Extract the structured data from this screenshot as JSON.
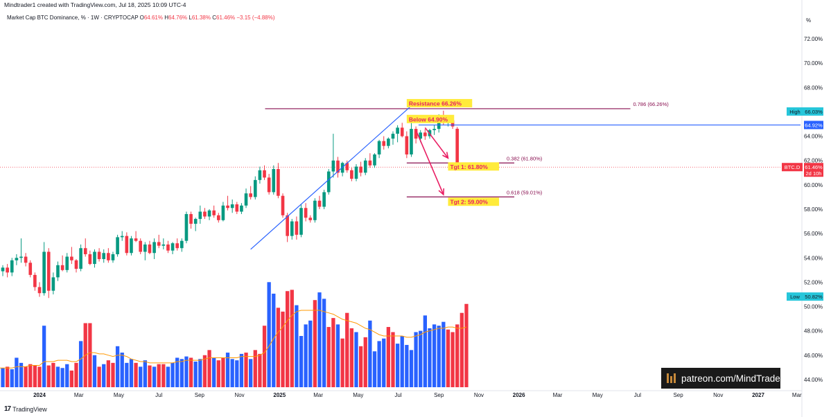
{
  "header": {
    "credit": "Mindtrader1 created with TradingView.com, Jul 18, 2025 10:09 UTC-4",
    "symbol": "Market Cap BTC Dominance, % · 1W · CRYPTOCAP",
    "o_label": "O",
    "o_value": "64.61%",
    "h_label": "H",
    "h_value": "64.76%",
    "l_label": "L",
    "l_value": "61.38%",
    "c_label": "C",
    "c_value": "61.46%",
    "change": "−3.15 (−4.88%)"
  },
  "footer": {
    "brand": "TradingView",
    "brand_mark": "17"
  },
  "watermark": {
    "text": "patreon.com/MindTrader",
    "icon": "patreon-logo-icon"
  },
  "colors": {
    "up": "#089981",
    "down": "#f23645",
    "vol_up": "#2962ff",
    "vol_down": "#f23645",
    "ma": "#ff9800",
    "trend": "#2962ff",
    "level": "#880e4f",
    "arrow": "#e91e63",
    "label_bg": "#ffeb3b",
    "label_text": "#e91e63",
    "high_low_tag": "#26c6da"
  },
  "chart_data": {
    "type": "candlestick",
    "title": "Market Cap BTC Dominance, % · 1W · CRYPTOCAP",
    "ylabel": "%",
    "ylim": [
      43.2,
      73.2
    ],
    "y_ticks": [
      "72.00%",
      "70.00%",
      "68.00%",
      "66.00%",
      "64.00%",
      "62.00%",
      "60.00%",
      "58.00%",
      "56.00%",
      "54.00%",
      "52.00%",
      "50.00%",
      "48.00%",
      "46.00%",
      "44.00%"
    ],
    "y_tick_values": [
      72,
      70,
      68,
      66,
      64,
      62,
      60,
      58,
      56,
      54,
      52,
      50,
      48,
      46,
      44
    ],
    "x_ticks": [
      "2024",
      "Mar",
      "May",
      "Jul",
      "Sep",
      "Nov",
      "2025",
      "Mar",
      "May",
      "Jul",
      "Sep",
      "Nov",
      "2026",
      "Mar",
      "May",
      "Jul",
      "Sep",
      "Nov",
      "2027",
      "Mar"
    ],
    "x_tick_dates": [
      "2024-01-01",
      "2024-03-01",
      "2024-05-01",
      "2024-07-01",
      "2024-09-01",
      "2024-11-01",
      "2025-01-01",
      "2025-03-01",
      "2025-05-01",
      "2025-07-01",
      "2025-09-01",
      "2025-11-01",
      "2026-01-01",
      "2026-03-01",
      "2026-05-01",
      "2026-07-01",
      "2026-09-01",
      "2026-11-01",
      "2027-01-01",
      "2027-03-01"
    ],
    "bold_x_ticks": [
      "2024",
      "2025",
      "2026",
      "2027"
    ],
    "first_candle_date": "2023-10-30",
    "series": [
      {
        "name": "BTC.D",
        "ohlc": [
          [
            52.6,
            53.2,
            52.1,
            52.9
          ],
          [
            52.9,
            53.4,
            52.5,
            53.2
          ],
          [
            53.2,
            53.5,
            52.4,
            52.8
          ],
          [
            52.8,
            54.0,
            52.5,
            53.8
          ],
          [
            53.8,
            54.3,
            53.4,
            54.0
          ],
          [
            54.0,
            55.6,
            53.6,
            54.1
          ],
          [
            54.1,
            54.4,
            53.3,
            53.6
          ],
          [
            53.6,
            53.8,
            52.4,
            52.6
          ],
          [
            52.6,
            52.8,
            51.3,
            51.6
          ],
          [
            51.6,
            52.0,
            50.8,
            51.1
          ],
          [
            51.1,
            55.3,
            50.9,
            54.5
          ],
          [
            54.5,
            54.8,
            50.7,
            51.3
          ],
          [
            51.3,
            52.8,
            51.0,
            52.4
          ],
          [
            52.4,
            53.7,
            52.1,
            53.4
          ],
          [
            53.4,
            54.2,
            52.9,
            53.0
          ],
          [
            53.0,
            54.4,
            52.8,
            54.1
          ],
          [
            54.1,
            54.9,
            53.5,
            53.8
          ],
          [
            53.8,
            53.9,
            52.8,
            53.1
          ],
          [
            53.1,
            55.1,
            52.9,
            54.8
          ],
          [
            54.8,
            55.6,
            54.1,
            54.3
          ],
          [
            54.3,
            54.6,
            53.4,
            53.5
          ],
          [
            53.5,
            54.7,
            53.2,
            54.5
          ],
          [
            54.5,
            54.8,
            53.7,
            53.9
          ],
          [
            53.9,
            54.7,
            53.6,
            54.4
          ],
          [
            54.4,
            54.8,
            53.6,
            53.8
          ],
          [
            53.8,
            54.5,
            53.6,
            54.3
          ],
          [
            54.3,
            55.9,
            54.1,
            55.7
          ],
          [
            55.7,
            56.2,
            55.4,
            55.8
          ],
          [
            55.8,
            56.1,
            54.2,
            54.4
          ],
          [
            54.4,
            55.8,
            54.2,
            55.6
          ],
          [
            55.6,
            56.2,
            55.3,
            55.4
          ],
          [
            55.4,
            55.6,
            54.3,
            54.5
          ],
          [
            54.5,
            55.3,
            53.8,
            55.1
          ],
          [
            55.1,
            55.4,
            54.3,
            54.4
          ],
          [
            54.4,
            55.6,
            53.9,
            55.3
          ],
          [
            55.3,
            55.9,
            54.8,
            55.0
          ],
          [
            55.0,
            55.6,
            54.7,
            55.1
          ],
          [
            55.1,
            55.4,
            54.4,
            54.6
          ],
          [
            54.6,
            55.3,
            54.3,
            55.2
          ],
          [
            55.2,
            55.6,
            54.6,
            54.8
          ],
          [
            54.8,
            55.6,
            54.5,
            55.4
          ],
          [
            55.4,
            57.8,
            55.2,
            57.6
          ],
          [
            57.6,
            57.8,
            56.4,
            56.8
          ],
          [
            56.8,
            57.3,
            56.2,
            57.2
          ],
          [
            57.2,
            58.3,
            56.8,
            57.8
          ],
          [
            57.8,
            58.1,
            57.2,
            57.4
          ],
          [
            57.4,
            58.0,
            57.1,
            57.9
          ],
          [
            57.9,
            58.3,
            57.3,
            57.5
          ],
          [
            57.5,
            57.7,
            56.9,
            57.1
          ],
          [
            57.1,
            58.6,
            57.0,
            58.3
          ],
          [
            58.3,
            59.1,
            57.9,
            58.1
          ],
          [
            58.1,
            58.8,
            57.7,
            58.4
          ],
          [
            58.4,
            58.6,
            57.6,
            57.8
          ],
          [
            57.8,
            58.5,
            57.6,
            58.3
          ],
          [
            58.3,
            59.7,
            58.1,
            59.3
          ],
          [
            59.3,
            59.9,
            58.8,
            59.0
          ],
          [
            59.0,
            60.7,
            58.8,
            60.4
          ],
          [
            60.4,
            61.5,
            60.1,
            61.2
          ],
          [
            61.2,
            61.6,
            60.4,
            60.6
          ],
          [
            60.6,
            60.9,
            59.2,
            59.4
          ],
          [
            59.4,
            61.6,
            59.2,
            61.3
          ],
          [
            61.3,
            61.8,
            58.9,
            59.1
          ],
          [
            59.1,
            59.3,
            57.3,
            57.5
          ],
          [
            57.5,
            57.7,
            55.3,
            55.8
          ],
          [
            55.8,
            57.2,
            55.5,
            57.0
          ],
          [
            57.0,
            57.4,
            55.5,
            55.9
          ],
          [
            55.9,
            58.4,
            55.7,
            58.1
          ],
          [
            58.1,
            58.5,
            57.0,
            57.3
          ],
          [
            57.3,
            57.5,
            56.9,
            57.1
          ],
          [
            57.1,
            58.9,
            56.9,
            58.7
          ],
          [
            58.7,
            59.1,
            58.0,
            58.2
          ],
          [
            58.2,
            59.6,
            58.0,
            59.4
          ],
          [
            59.4,
            61.3,
            59.2,
            61.1
          ],
          [
            61.1,
            64.2,
            60.6,
            62.0
          ],
          [
            62.0,
            62.3,
            60.6,
            61.0
          ],
          [
            61.0,
            61.9,
            60.7,
            61.8
          ],
          [
            61.8,
            62.0,
            61.0,
            61.2
          ],
          [
            61.2,
            61.4,
            60.3,
            60.5
          ],
          [
            60.5,
            61.7,
            60.3,
            61.5
          ],
          [
            61.5,
            61.9,
            60.7,
            61.0
          ],
          [
            61.0,
            62.2,
            60.8,
            62.0
          ],
          [
            62.0,
            62.6,
            61.4,
            61.6
          ],
          [
            61.6,
            62.6,
            61.4,
            62.5
          ],
          [
            62.5,
            63.7,
            62.2,
            63.6
          ],
          [
            63.6,
            64.0,
            62.9,
            63.2
          ],
          [
            63.2,
            63.9,
            63.0,
            63.8
          ],
          [
            63.8,
            64.4,
            63.3,
            64.2
          ],
          [
            64.2,
            64.9,
            63.5,
            64.7
          ],
          [
            64.7,
            65.1,
            63.9,
            64.0
          ],
          [
            64.0,
            64.4,
            62.2,
            62.5
          ],
          [
            62.5,
            65.4,
            62.3,
            64.6
          ],
          [
            64.6,
            64.8,
            63.4,
            63.8
          ],
          [
            63.8,
            64.5,
            63.5,
            64.3
          ],
          [
            64.3,
            64.6,
            63.7,
            64.0
          ],
          [
            64.0,
            64.6,
            63.8,
            64.5
          ],
          [
            64.5,
            64.9,
            64.1,
            64.6
          ],
          [
            64.6,
            65.8,
            64.3,
            65.6
          ],
          [
            65.6,
            66.1,
            64.9,
            65.2
          ],
          [
            65.2,
            65.4,
            64.8,
            65.3
          ],
          [
            65.3,
            65.6,
            64.6,
            64.8
          ],
          [
            64.61,
            64.76,
            61.38,
            61.46
          ]
        ]
      }
    ],
    "volume": [
      [
        1.4,
        "up"
      ],
      [
        1.5,
        "up"
      ],
      [
        1.6,
        "down"
      ],
      [
        1.4,
        "up"
      ],
      [
        2.3,
        "up"
      ],
      [
        1.9,
        "up"
      ],
      [
        1.6,
        "down"
      ],
      [
        1.8,
        "down"
      ],
      [
        1.7,
        "down"
      ],
      [
        1.6,
        "down"
      ],
      [
        4.8,
        "up"
      ],
      [
        1.7,
        "down"
      ],
      [
        1.9,
        "down"
      ],
      [
        1.6,
        "up"
      ],
      [
        1.5,
        "up"
      ],
      [
        1.8,
        "up"
      ],
      [
        1.3,
        "down"
      ],
      [
        1.9,
        "down"
      ],
      [
        3.6,
        "up"
      ],
      [
        5.0,
        "down"
      ],
      [
        5.0,
        "down"
      ],
      [
        2.5,
        "up"
      ],
      [
        1.6,
        "down"
      ],
      [
        1.8,
        "up"
      ],
      [
        2.1,
        "down"
      ],
      [
        1.9,
        "down"
      ],
      [
        3.2,
        "up"
      ],
      [
        2.7,
        "up"
      ],
      [
        1.9,
        "up"
      ],
      [
        2.2,
        "up"
      ],
      [
        1.9,
        "down"
      ],
      [
        1.6,
        "up"
      ],
      [
        2.1,
        "up"
      ],
      [
        1.7,
        "down"
      ],
      [
        1.6,
        "up"
      ],
      [
        1.8,
        "down"
      ],
      [
        1.8,
        "down"
      ],
      [
        1.6,
        "up"
      ],
      [
        1.9,
        "up"
      ],
      [
        2.3,
        "up"
      ],
      [
        2.2,
        "up"
      ],
      [
        2.4,
        "up"
      ],
      [
        2.3,
        "down"
      ],
      [
        2.0,
        "up"
      ],
      [
        2.2,
        "up"
      ],
      [
        2.5,
        "down"
      ],
      [
        2.9,
        "down"
      ],
      [
        2.3,
        "up"
      ],
      [
        2.1,
        "down"
      ],
      [
        2.3,
        "down"
      ],
      [
        2.7,
        "up"
      ],
      [
        2.2,
        "up"
      ],
      [
        2.1,
        "up"
      ],
      [
        2.6,
        "up"
      ],
      [
        2.7,
        "down"
      ],
      [
        2.2,
        "up"
      ],
      [
        2.9,
        "down"
      ],
      [
        2.6,
        "down"
      ],
      [
        4.8,
        "down"
      ],
      [
        8.2,
        "up"
      ],
      [
        7.3,
        "up"
      ],
      [
        6.2,
        "down"
      ],
      [
        5.9,
        "down"
      ],
      [
        7.5,
        "down"
      ],
      [
        7.6,
        "down"
      ],
      [
        6.4,
        "up"
      ],
      [
        4.0,
        "up"
      ],
      [
        4.9,
        "up"
      ],
      [
        5.2,
        "up"
      ],
      [
        6.8,
        "down"
      ],
      [
        7.4,
        "up"
      ],
      [
        6.9,
        "up"
      ],
      [
        4.7,
        "down"
      ],
      [
        5.4,
        "down"
      ],
      [
        4.9,
        "up"
      ],
      [
        3.8,
        "down"
      ],
      [
        5.8,
        "down"
      ],
      [
        4.6,
        "down"
      ],
      [
        4.3,
        "up"
      ],
      [
        3.2,
        "down"
      ],
      [
        3.9,
        "down"
      ],
      [
        5.2,
        "up"
      ],
      [
        2.8,
        "up"
      ],
      [
        3.6,
        "up"
      ],
      [
        3.8,
        "up"
      ],
      [
        4.7,
        "down"
      ],
      [
        4.3,
        "down"
      ],
      [
        3.4,
        "up"
      ],
      [
        4.0,
        "up"
      ],
      [
        3.3,
        "up"
      ],
      [
        2.9,
        "up"
      ],
      [
        4.3,
        "up"
      ],
      [
        4.4,
        "up"
      ],
      [
        5.6,
        "up"
      ],
      [
        4.6,
        "up"
      ],
      [
        4.9,
        "up"
      ],
      [
        4.8,
        "up"
      ],
      [
        5.1,
        "up"
      ],
      [
        4.5,
        "down"
      ],
      [
        4.3,
        "down"
      ],
      [
        4.9,
        "down"
      ],
      [
        5.8,
        "down"
      ],
      [
        6.5,
        "down"
      ]
    ],
    "volume_ma": [
      1.5,
      1.5,
      1.5,
      1.5,
      1.6,
      1.6,
      1.6,
      1.7,
      1.7,
      1.7,
      2.0,
      2.0,
      2.0,
      2.1,
      2.1,
      2.1,
      2.0,
      2.0,
      2.2,
      2.5,
      2.7,
      2.7,
      2.6,
      2.6,
      2.5,
      2.4,
      2.5,
      2.5,
      2.4,
      2.2,
      2.1,
      2.0,
      2.0,
      1.9,
      1.9,
      1.9,
      1.9,
      1.9,
      1.9,
      2.0,
      2.0,
      2.1,
      2.1,
      2.1,
      2.1,
      2.2,
      2.3,
      2.3,
      2.3,
      2.3,
      2.3,
      2.3,
      2.3,
      2.4,
      2.4,
      2.4,
      2.4,
      2.5,
      2.7,
      3.2,
      3.8,
      4.3,
      4.7,
      5.2,
      5.6,
      5.9,
      6.0,
      6.0,
      6.0,
      6.0,
      6.0,
      5.9,
      5.8,
      5.7,
      5.5,
      5.3,
      5.2,
      5.1,
      5.0,
      4.8,
      4.6,
      4.5,
      4.3,
      4.1,
      4.0,
      4.0,
      4.0,
      4.0,
      4.0,
      3.9,
      3.9,
      4.0,
      4.1,
      4.3,
      4.4,
      4.5,
      4.6,
      4.6,
      4.7,
      4.7,
      4.6,
      4.6,
      4.7
    ],
    "current_price": 61.46,
    "current_label": "BTC.D",
    "current_value": "61.46%",
    "countdown": "2d 10h",
    "high_label": "High",
    "high_value": "66.03%",
    "high": 66.03,
    "low_label": "Low",
    "low_value": "50.82%",
    "low": 50.82,
    "blue_level": 64.92,
    "blue_level_label": "64.92%",
    "fib_levels": [
      {
        "value": 66.26,
        "label": "0.786 (66.26%)"
      },
      {
        "value": 61.8,
        "label": "0.382 (61.80%)"
      },
      {
        "value": 59.01,
        "label": "0.618 (59.01%)"
      }
    ],
    "trendline": {
      "from": [
        "2024-11-18",
        54.7
      ],
      "to": [
        "2025-07-21",
        66.5
      ]
    },
    "annotations": [
      {
        "text": "Resistance 66.26%",
        "x": "2025-07-14",
        "y": 66.6
      },
      {
        "text": "Below 64.90%",
        "x": "2025-07-14",
        "y": 65.3
      },
      {
        "text": "Tgt 1: 61.80%",
        "x": "2025-09-15",
        "y": 61.4
      },
      {
        "text": "Tgt 2: 59.00%",
        "x": "2025-09-15",
        "y": 58.5
      }
    ],
    "arrows": [
      {
        "from": [
          "2025-08-11",
          64.7
        ],
        "to": [
          "2025-09-15",
          62.2
        ]
      },
      {
        "from": [
          "2025-07-28",
          64.5
        ],
        "to": [
          "2025-09-08",
          59.2
        ]
      }
    ]
  }
}
